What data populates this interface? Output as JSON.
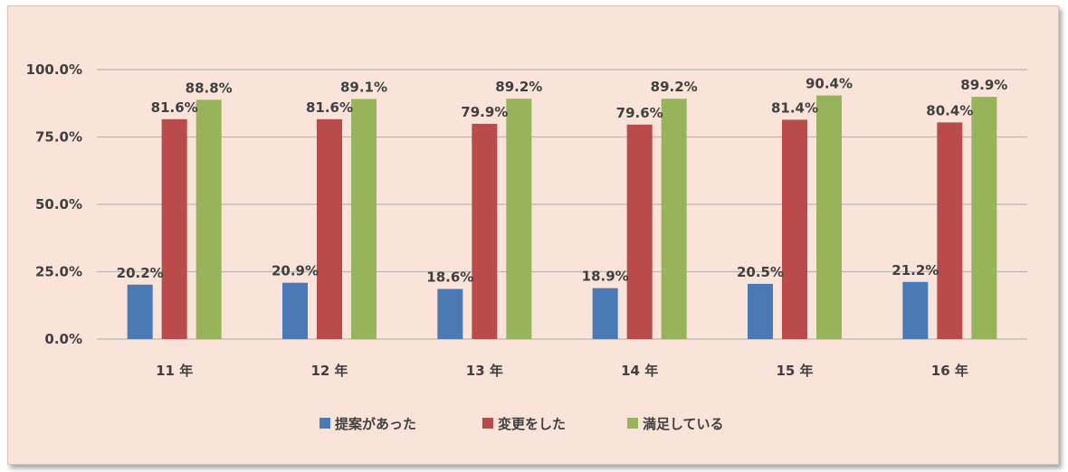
{
  "chart_data": {
    "type": "bar",
    "categories": [
      "11 年",
      "12 年",
      "13 年",
      "14 年",
      "15 年",
      "16 年"
    ],
    "series": [
      {
        "name": "提案があった",
        "color": "#4a7ab5",
        "values": [
          20.2,
          20.9,
          18.6,
          18.9,
          20.5,
          21.2
        ],
        "labels": [
          "20.2%",
          "20.9%",
          "18.6%",
          "18.9%",
          "20.5%",
          "21.2%"
        ]
      },
      {
        "name": "変更をした",
        "color": "#b94b4b",
        "values": [
          81.6,
          81.6,
          79.9,
          79.6,
          81.4,
          80.4
        ],
        "labels": [
          "81.6%",
          "81.6%",
          "79.9%",
          "79.6%",
          "81.4%",
          "80.4%"
        ]
      },
      {
        "name": "満足している",
        "color": "#98b45a",
        "values": [
          88.8,
          89.1,
          89.2,
          89.2,
          90.4,
          89.9
        ],
        "labels": [
          "88.8%",
          "89.1%",
          "89.2%",
          "89.2%",
          "90.4%",
          "89.9%"
        ]
      }
    ],
    "ylim": [
      0,
      100
    ],
    "yticks": [
      0,
      25,
      50,
      75,
      100
    ],
    "ytick_labels": [
      "0.0%",
      "25.0%",
      "50.0%",
      "75.0%",
      "100.0%"
    ],
    "grid": true,
    "legend_position": "bottom"
  }
}
